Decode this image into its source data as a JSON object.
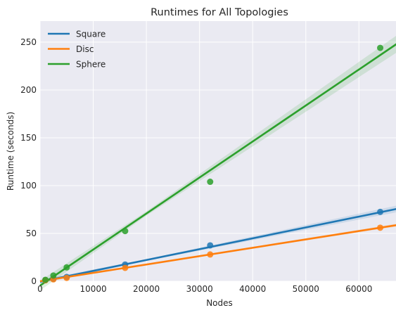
{
  "chart_data": {
    "type": "scatter",
    "title": "Runtimes for All Topologies",
    "xlabel": "Nodes",
    "ylabel": "Runtime (seconds)",
    "xlim": [
      0,
      67500
    ],
    "ylim": [
      0,
      272
    ],
    "xticks": [
      0,
      10000,
      20000,
      30000,
      40000,
      50000,
      60000
    ],
    "yticks": [
      0,
      50,
      100,
      150,
      200,
      250
    ],
    "grid": true,
    "legend_position": "top-left",
    "series": [
      {
        "name": "Square",
        "color": "#1f77b4",
        "points": [
          [
            1000,
            1.2
          ],
          [
            2500,
            2.5
          ],
          [
            5000,
            4.5
          ],
          [
            16000,
            17.5
          ],
          [
            32000,
            37.5
          ],
          [
            64000,
            72.5
          ]
        ],
        "fit": {
          "slope": 0.001135,
          "intercept": -0.5
        },
        "ci_halfwidth_end": 3.5
      },
      {
        "name": "Disc",
        "color": "#ff7f0e",
        "points": [
          [
            1000,
            1.0
          ],
          [
            2500,
            2.0
          ],
          [
            5000,
            3.5
          ],
          [
            16000,
            14.0
          ],
          [
            32000,
            28.0
          ],
          [
            64000,
            56.0
          ]
        ],
        "fit": {
          "slope": 0.000875,
          "intercept": 0.0
        },
        "ci_halfwidth_end": 1.5
      },
      {
        "name": "Sphere",
        "color": "#2ca02c",
        "points": [
          [
            1000,
            1.5
          ],
          [
            2500,
            6.0
          ],
          [
            5000,
            14.5
          ],
          [
            16000,
            52.5
          ],
          [
            32000,
            104.0
          ],
          [
            64000,
            244.0
          ]
        ],
        "fit": {
          "slope": 0.003765,
          "intercept": -4.5
        },
        "ci_halfwidth_end": 9.0
      }
    ]
  }
}
